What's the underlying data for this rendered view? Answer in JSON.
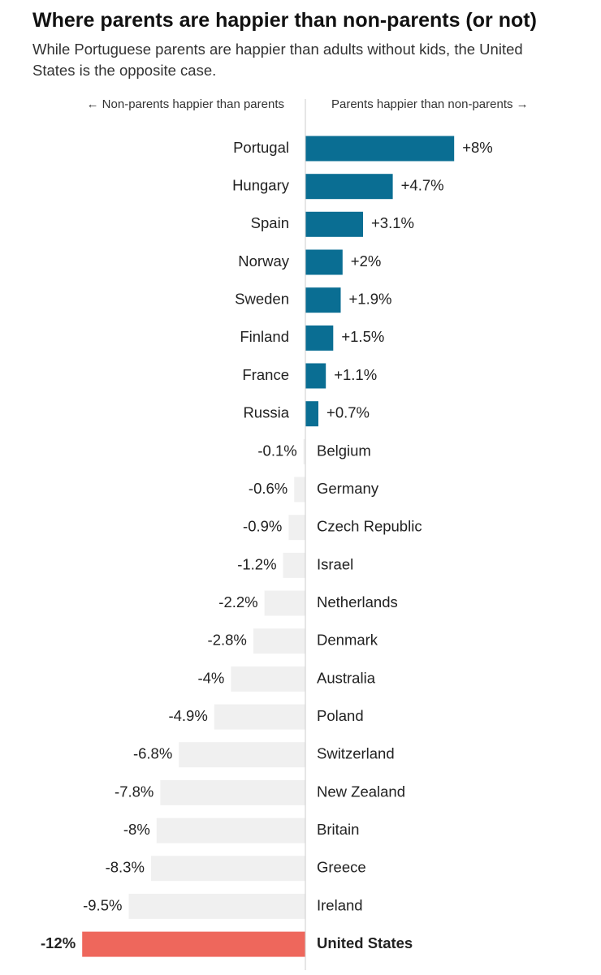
{
  "title": "Where parents are happier than non-parents (or not)",
  "subtitle": "While Portuguese parents are happier than adults without kids, the United States is the opposite case.",
  "colors": {
    "positive": "#0a6e93",
    "negative": "#f0f0f0",
    "highlight": "#ee675c",
    "axis": "#cccccc",
    "text": "#222222"
  },
  "chart_data": {
    "type": "bar",
    "orientation": "horizontal",
    "left_label": "← Non-parents happier than parents",
    "right_label": "Parents happier than non-parents →",
    "unit": "%",
    "categories": [
      "Portugal",
      "Hungary",
      "Spain",
      "Norway",
      "Sweden",
      "Finland",
      "France",
      "Russia",
      "Belgium",
      "Germany",
      "Czech Republic",
      "Israel",
      "Netherlands",
      "Denmark",
      "Australia",
      "Poland",
      "Switzerland",
      "New Zealand",
      "Britain",
      "Greece",
      "Ireland",
      "United States"
    ],
    "values": [
      8,
      4.7,
      3.1,
      2,
      1.9,
      1.5,
      1.1,
      0.7,
      -0.1,
      -0.6,
      -0.9,
      -1.2,
      -2.2,
      -2.8,
      -4,
      -4.9,
      -6.8,
      -7.8,
      -8,
      -8.3,
      -9.5,
      -12
    ],
    "labels": [
      "+8%",
      "+4.7%",
      "+3.1%",
      "+2%",
      "+1.9%",
      "+1.5%",
      "+1.1%",
      "+0.7%",
      "-0.1%",
      "-0.6%",
      "-0.9%",
      "-1.2%",
      "-2.2%",
      "-2.8%",
      "-4%",
      "-4.9%",
      "-6.8%",
      "-7.8%",
      "-8%",
      "-8.3%",
      "-9.5%",
      "-12%"
    ],
    "highlight": "United States",
    "xlim": [
      -12,
      8
    ]
  }
}
